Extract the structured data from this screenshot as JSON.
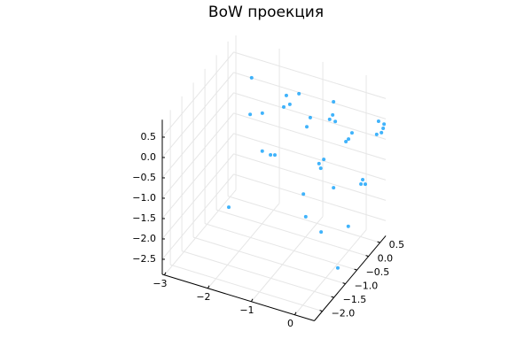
{
  "chart_data": {
    "type": "scatter3d",
    "title": "BoW проекция",
    "x": [
      -2.24,
      -2.38,
      -2.1,
      -1.6,
      -1.52,
      -1.31,
      -1.66,
      -0.89,
      -0.97,
      -0.62,
      -0.64,
      -0.58,
      -0.71,
      -0.01,
      -0.07,
      0.07,
      0.31,
      0.39,
      0.24,
      0.41,
      0.35,
      -1.73,
      -1.54,
      -1.44,
      -0.53,
      -0.42,
      -0.49,
      0.07,
      0.21,
      0.27,
      0.17,
      -0.73,
      -1.97,
      -0.57,
      -0.11,
      0.25,
      0.38
    ],
    "y": [
      0.0,
      0.2,
      0.2,
      0.3,
      0.3,
      0.3,
      0.3,
      0.0,
      0.0,
      0.5,
      0.5,
      0.5,
      0.5,
      0.0,
      0.0,
      0.0,
      0.7,
      0.75,
      0.75,
      0.75,
      0.75,
      -0.5,
      -0.5,
      -0.5,
      -0.3,
      -0.3,
      -0.3,
      -0.8,
      0.2,
      0.2,
      0.2,
      -0.6,
      -1.5,
      -0.8,
      -1.0,
      -0.5,
      -1.2
    ],
    "z": [
      0.64,
      -0.44,
      -0.32,
      0.21,
      0.02,
      0.35,
      -0.09,
      0.1,
      -0.15,
      0.24,
      -0.09,
      -0.23,
      -0.22,
      -0.14,
      -0.22,
      0.04,
      -0.07,
      -0.25,
      -0.45,
      -0.14,
      -0.37,
      -0.66,
      -0.69,
      -0.66,
      -0.71,
      -0.57,
      -0.81,
      -0.77,
      -1.2,
      -1.29,
      -1.32,
      -1.32,
      -1.44,
      -1.69,
      -1.78,
      -1.86,
      -2.37
    ],
    "color": "#009af9",
    "xlim": [
      -3.05,
      0.45
    ],
    "ylim": [
      -2.35,
      0.75
    ],
    "zlim": [
      -2.87,
      0.93
    ],
    "xticks": [
      {
        "value": -3,
        "label": "−3"
      },
      {
        "value": -2,
        "label": "−2"
      },
      {
        "value": -1,
        "label": "−1"
      },
      0
    ],
    "yticks": [
      {
        "value": -2,
        "label": "−2.0"
      },
      {
        "value": -1.5,
        "label": "−1.5"
      },
      {
        "value": -1,
        "label": "−1.0"
      },
      {
        "value": -0.5,
        "label": "−0.5"
      },
      {
        "value": 0,
        "label": "0.0"
      },
      0.5
    ],
    "zticks": [
      {
        "value": -2.5,
        "label": "−2.5"
      },
      {
        "value": -2,
        "label": "−2.0"
      },
      {
        "value": -1.5,
        "label": "−1.5"
      },
      {
        "value": -1,
        "label": "−1.0"
      },
      {
        "value": -0.5,
        "label": "−0.5"
      },
      {
        "value": 0,
        "label": "0.0"
      },
      0.5
    ],
    "grid": true
  }
}
